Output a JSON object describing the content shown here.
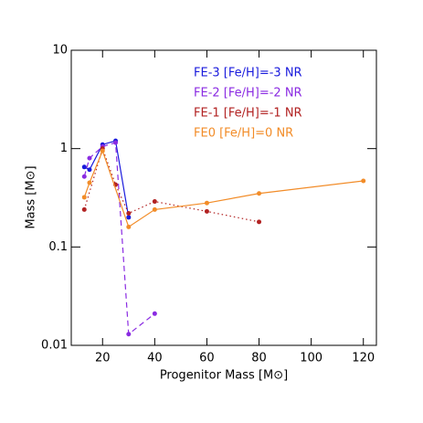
{
  "chart_data": {
    "type": "line",
    "xlabel": "Progenitor Mass [M⊙]",
    "ylabel": "Mass [M⊙]",
    "xlim": [
      8,
      125
    ],
    "xticks": [
      20,
      40,
      60,
      80,
      100,
      120
    ],
    "ylim": [
      0.01,
      10
    ],
    "yticks": [
      0.01,
      0.1,
      1,
      10
    ],
    "ylog": true,
    "legend": "upper right",
    "series": [
      {
        "name": "FE-3 [Fe/H]=-3 NR",
        "color": "#1a1adc",
        "linestyle": "solid",
        "x": [
          13,
          15,
          20,
          25,
          30
        ],
        "values": [
          0.65,
          0.61,
          1.1,
          1.2,
          0.2
        ]
      },
      {
        "name": "FE-2 [Fe/H]=-2 NR",
        "color": "#8a2be2",
        "linestyle": "dashed",
        "x": [
          13,
          15,
          20,
          25,
          30,
          40
        ],
        "values": [
          0.52,
          0.8,
          1.05,
          1.15,
          0.013,
          0.021
        ]
      },
      {
        "name": "FE-1 [Fe/H]=-1 NR",
        "color": "#b22222",
        "linestyle": "dotted",
        "x": [
          13,
          20,
          25,
          30,
          40,
          60,
          80
        ],
        "values": [
          0.24,
          1.0,
          0.43,
          0.22,
          0.29,
          0.23,
          0.18
        ]
      },
      {
        "name": "FE0 [Fe/H]=0 NR",
        "color": "#f28c28",
        "linestyle": "solid",
        "x": [
          13,
          15,
          20,
          30,
          40,
          60,
          80,
          120
        ],
        "values": [
          0.32,
          0.45,
          0.95,
          0.16,
          0.24,
          0.28,
          0.35,
          0.47
        ]
      }
    ]
  }
}
